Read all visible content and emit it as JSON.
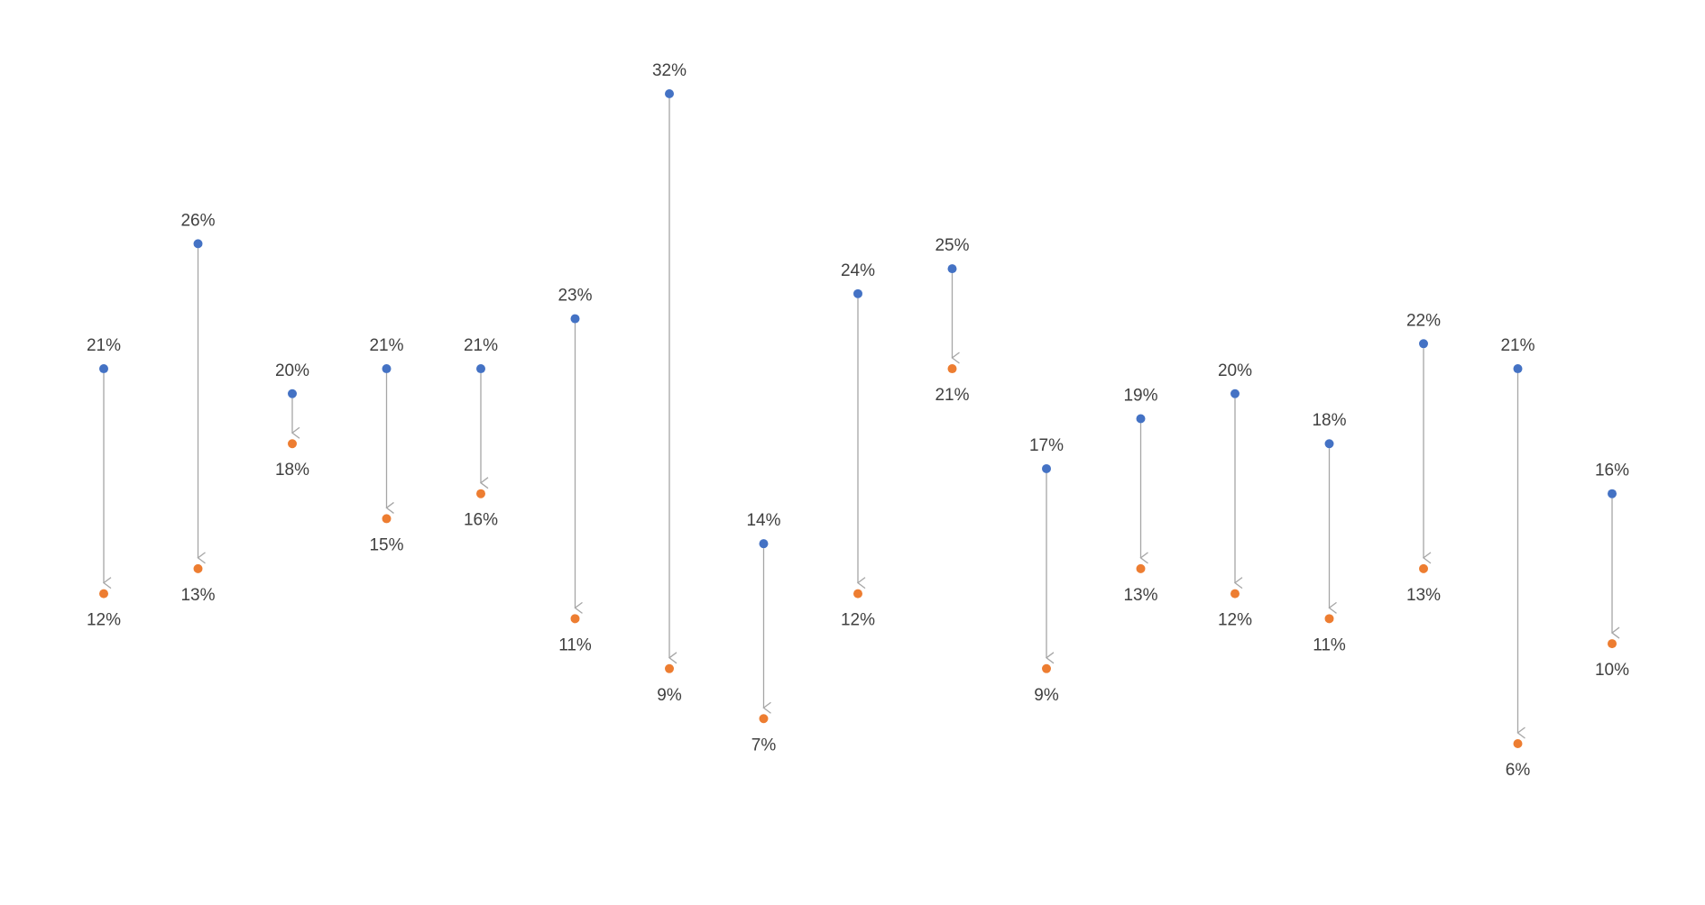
{
  "chart_data": {
    "type": "arrow-dumbbell",
    "series": [
      {
        "color": "#4472c4",
        "values": [
          21,
          26,
          20,
          21,
          21,
          23,
          32,
          14,
          24,
          25,
          17,
          19,
          20,
          18,
          22,
          21,
          16
        ],
        "value_labels": [
          "21%",
          "26%",
          "20%",
          "21%",
          "21%",
          "23%",
          "32%",
          "14%",
          "24%",
          "25%",
          "17%",
          "19%",
          "20%",
          "18%",
          "22%",
          "21%",
          "16%"
        ]
      },
      {
        "color": "#ed7d31",
        "values": [
          12,
          13,
          18,
          15,
          16,
          11,
          9,
          7,
          12,
          21,
          9,
          13,
          12,
          11,
          13,
          6,
          10
        ],
        "value_labels": [
          "12%",
          "13%",
          "18%",
          "15%",
          "16%",
          "11%",
          "9%",
          "7%",
          "12%",
          "21%",
          "9%",
          "13%",
          "12%",
          "11%",
          "13%",
          "6%",
          "10%"
        ]
      }
    ],
    "arrow_color": "#a6a6a6"
  }
}
